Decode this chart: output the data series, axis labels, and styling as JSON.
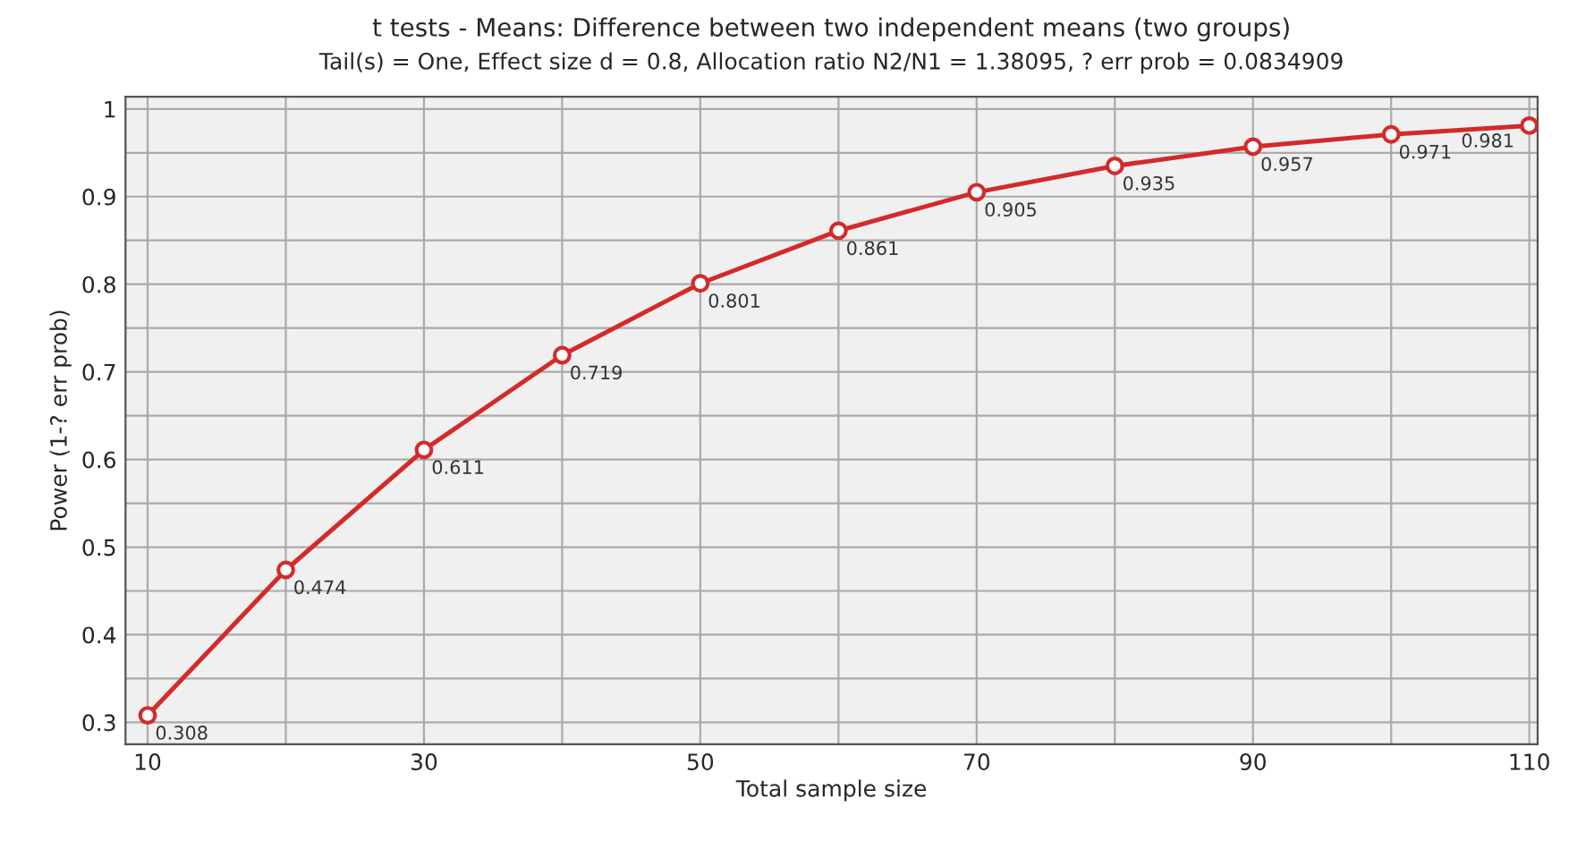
{
  "chart_data": {
    "type": "line",
    "title": "t tests - Means: Difference between two independent means (two groups)",
    "subtitle": "Tail(s) = One, Effect size d = 0.8, Allocation ratio N2/N1 = 1.38095, ? err prob = 0.0834909",
    "xlabel": "Total sample size",
    "ylabel": "Power (1-? err prob)",
    "x": [
      10,
      20,
      30,
      40,
      50,
      60,
      70,
      80,
      90,
      100,
      110
    ],
    "series": [
      {
        "color": "#d42a2a",
        "values": [
          0.308,
          0.474,
          0.611,
          0.719,
          0.801,
          0.861,
          0.905,
          0.935,
          0.957,
          0.971,
          0.981
        ]
      }
    ],
    "data_labels": true,
    "marker": "circle",
    "line_style": "solid",
    "grid": true,
    "xlim": [
      8.4,
      110.6
    ],
    "ylim": [
      0.275,
      1.014
    ],
    "xticks": [
      10,
      {
        "value": 20,
        "label": null
      },
      30,
      {
        "value": 40,
        "label": null
      },
      50,
      {
        "value": 60,
        "label": null
      },
      70,
      {
        "value": 80,
        "label": null
      },
      90,
      {
        "value": 100,
        "label": null
      },
      110
    ],
    "yticks": [
      0.3,
      {
        "value": 0.35,
        "label": null
      },
      0.4,
      {
        "value": 0.45,
        "label": null
      },
      0.5,
      {
        "value": 0.55,
        "label": null
      },
      0.6,
      {
        "value": 0.65,
        "label": null
      },
      0.7,
      {
        "value": 0.75,
        "label": null
      },
      0.8,
      {
        "value": 0.85,
        "label": null
      },
      0.9,
      {
        "value": 0.95,
        "label": null
      },
      1
    ]
  }
}
